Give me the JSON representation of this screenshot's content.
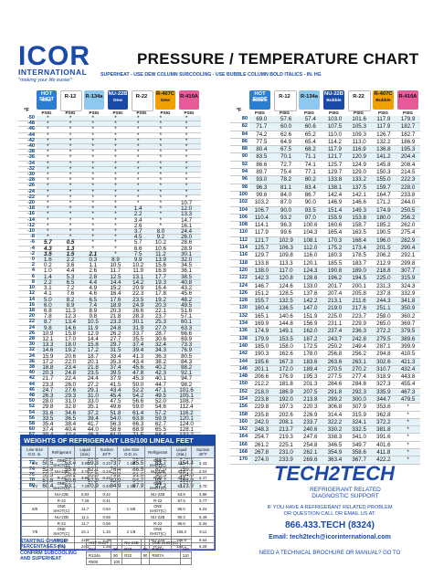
{
  "logo": {
    "name": "ICOR",
    "intl": "INTERNATIONAL",
    "tag": "\"making your life easier\""
  },
  "title": "PRESSURE / TEMPERATURE CHART",
  "subtitle": "SUPERHEAT - USE DEW COLUMN   SUBCOOLING - USE BUBBLE COLUMN   BOLD ITALICS - IN. HG",
  "headers_left": [
    {
      "label": "HOT SHOT",
      "sub": "Dew",
      "unit": "PSIG",
      "color": "#2a7fd4"
    },
    {
      "label": "R-12",
      "sub": "",
      "unit": "PSIG",
      "color": "#ffffff"
    },
    {
      "label": "R-134a",
      "sub": "",
      "unit": "PSIG",
      "color": "#8fc8ee"
    },
    {
      "label": "NU-22B",
      "sub": "Dew",
      "unit": "PSIG",
      "color": "#1a4aa8"
    },
    {
      "label": "R-22",
      "sub": "",
      "unit": "PSIG",
      "color": "#ffffff"
    },
    {
      "label": "R-407C",
      "sub": "Dew",
      "unit": "PSIG",
      "color": "#f0a000"
    },
    {
      "label": "R-410A",
      "sub": "",
      "unit": "PSIG",
      "color": "#e85a9a"
    }
  ],
  "headers_right": [
    {
      "label": "HOT SHOT",
      "sub": "Bubble",
      "unit": "PSIG",
      "color": "#2a7fd4"
    },
    {
      "label": "R-12",
      "sub": "",
      "unit": "PSIG",
      "color": "#ffffff"
    },
    {
      "label": "R-134a",
      "sub": "",
      "unit": "PSIG",
      "color": "#8fc8ee"
    },
    {
      "label": "NU-22B",
      "sub": "Bubble",
      "unit": "PSIG",
      "color": "#1a4aa8"
    },
    {
      "label": "R-22",
      "sub": "",
      "unit": "PSIG",
      "color": "#ffffff"
    },
    {
      "label": "R-407C",
      "sub": "Bubble",
      "unit": "PSIG",
      "color": "#f0a000"
    },
    {
      "label": "R-410A",
      "sub": "",
      "unit": "PSIG",
      "color": "#e85a9a"
    }
  ],
  "temp_unit": "°F",
  "left_rows": [
    [
      "-50",
      "*",
      "*",
      "*",
      "*",
      "*",
      "*",
      "*"
    ],
    [
      "-48",
      "*",
      "*",
      "*",
      "*",
      "*",
      "*",
      "*"
    ],
    [
      "-46",
      "*",
      "*",
      "*",
      "*",
      "*",
      "*",
      "*"
    ],
    [
      "-44",
      "*",
      "*",
      "*",
      "*",
      "*",
      "*",
      "*"
    ],
    [
      "-42",
      "*",
      "*",
      "*",
      "*",
      "*",
      "*",
      "*"
    ],
    [
      "-40",
      "*",
      "*",
      "*",
      "*",
      "*",
      "*",
      "*"
    ],
    [
      "-38",
      "*",
      "*",
      "*",
      "*",
      "*",
      "*",
      "*"
    ],
    [
      "-36",
      "*",
      "*",
      "*",
      "*",
      "*",
      "*",
      "*"
    ],
    [
      "-34",
      "*",
      "*",
      "*",
      "*",
      "*",
      "*",
      "*"
    ],
    [
      "-32",
      "*",
      "*",
      "*",
      "*",
      "*",
      "*",
      "*"
    ],
    [
      "-30",
      "*",
      "*",
      "*",
      "*",
      "*",
      "*",
      "*"
    ],
    [
      "-28",
      "*",
      "*",
      "*",
      "*",
      "*",
      "*",
      "*"
    ],
    [
      "-26",
      "*",
      "*",
      "*",
      "*",
      "*",
      "*",
      "*"
    ],
    [
      "-24",
      "*",
      "*",
      "*",
      "*",
      "*",
      "*",
      "*"
    ],
    [
      "-22",
      "*",
      "*",
      "*",
      "*",
      "*",
      "*",
      "*"
    ],
    [
      "-20",
      "*",
      "*",
      "*",
      "*",
      "*",
      "*",
      "10.7"
    ],
    [
      "-18",
      "*",
      "*",
      "*",
      "*",
      "1.4",
      "*",
      "12.0"
    ],
    [
      "-16",
      "*",
      "*",
      "*",
      "*",
      "2.2",
      "*",
      "13.3"
    ],
    [
      "-14",
      "*",
      "*",
      "*",
      "*",
      "3.4",
      "*",
      "14.7"
    ],
    [
      "-12",
      "*",
      "*",
      "*",
      "*",
      "2.6",
      "*",
      "16.1"
    ],
    [
      "-10",
      "*",
      "*",
      "*",
      "*",
      "3.7",
      "8.0",
      "24.4"
    ],
    [
      "-8",
      "*",
      "*",
      "*",
      "*",
      "4.5",
      "9.2",
      "26.0"
    ],
    [
      "-6",
      "5.7",
      "0.5",
      "*",
      "*",
      "5.7",
      "10.2",
      "28.6"
    ],
    [
      "-4",
      "4.3",
      "1.3",
      "*",
      "*",
      "6.6",
      "10.6",
      "28.9"
    ],
    [
      "-2",
      "3.5",
      "1.5",
      "2.1",
      "*",
      "7.5",
      "11.2",
      "30.1"
    ],
    [
      "0",
      "1.6",
      "2.2",
      "0.3",
      "8.9",
      "9.9",
      "13.9",
      "32.0"
    ],
    [
      "2",
      "0.2",
      "3.6",
      "1.1",
      "10.5",
      "10.2",
      "15.6",
      "34.5"
    ],
    [
      "4",
      "1.0",
      "4.4",
      "2.6",
      "11.7",
      "11.9",
      "16.8",
      "36.1"
    ],
    [
      "6",
      "1.4",
      "5.3",
      "2.8",
      "12.5",
      "13.1",
      "17.7",
      "38.5"
    ],
    [
      "8",
      "2.2",
      "6.5",
      "4.4",
      "14.4",
      "14.2",
      "19.3",
      "40.8"
    ],
    [
      "10",
      "3.1",
      "7.2",
      "4.9",
      "15.2",
      "20.9",
      "16.4",
      "43.2"
    ],
    [
      "12",
      "4.1",
      "7.6",
      "4.6",
      "16.4",
      "22.3",
      "17.8",
      "45.6"
    ],
    [
      "14",
      "5.0",
      "8.2",
      "6.5",
      "17.6",
      "23.5",
      "19.2",
      "48.2"
    ],
    [
      "16",
      "6.0",
      "8.9",
      "7.4",
      "18.9",
      "24.9",
      "20.3",
      "49.5"
    ],
    [
      "18",
      "6.8",
      "11.3",
      "8.9",
      "20.3",
      "26.6",
      "22.1",
      "51.6"
    ],
    [
      "20",
      "7.8",
      "12.3",
      "9.8",
      "21.8",
      "28.3",
      "23.7",
      "57.1"
    ],
    [
      "22",
      "8.7",
      "13.4",
      "10.5",
      "23.3",
      "30.1",
      "25.3",
      "60.1"
    ],
    [
      "24",
      "9.8",
      "14.6",
      "11.9",
      "24.8",
      "31.9",
      "27.0",
      "63.3"
    ],
    [
      "26",
      "10.9",
      "15.8",
      "12.9",
      "26.2",
      "33.7",
      "28.7",
      "66.6"
    ],
    [
      "28",
      "12.1",
      "17.0",
      "14.4",
      "27.7",
      "35.5",
      "30.6",
      "69.9"
    ],
    [
      "30",
      "13.3",
      "18.0",
      "15.8",
      "29.7",
      "37.4",
      "32.4",
      "73.3"
    ],
    [
      "32",
      "14.6",
      "19.2",
      "17.2",
      "31.5",
      "39.4",
      "34.3",
      "76.9"
    ],
    [
      "34",
      "15.9",
      "20.6",
      "18.7",
      "33.4",
      "41.3",
      "36.3",
      "80.5"
    ],
    [
      "36",
      "17.2",
      "22.0",
      "20.1",
      "35.3",
      "43.4",
      "38.2",
      "84.3"
    ],
    [
      "38",
      "18.8",
      "23.4",
      "21.8",
      "37.4",
      "45.6",
      "40.2",
      "88.2"
    ],
    [
      "40",
      "20.3",
      "24.8",
      "23.5",
      "39.5",
      "47.8",
      "42.3",
      "92.1"
    ],
    [
      "42",
      "21.7",
      "22.4",
      "24.4",
      "37.9",
      "45.3",
      "40.1",
      "94.7"
    ],
    [
      "44",
      "23.3",
      "26.0",
      "27.2",
      "41.5",
      "50.0",
      "44.7",
      "98.2"
    ],
    [
      "46",
      "24.7",
      "27.6",
      "29.1",
      "43.4",
      "52.2",
      "47.1",
      "101.6"
    ],
    [
      "48",
      "26.3",
      "29.3",
      "31.0",
      "45.4",
      "54.2",
      "49.5",
      "105.1"
    ],
    [
      "50",
      "28.0",
      "31.0",
      "33.0",
      "47.5",
      "56.6",
      "52.0",
      "108.7"
    ],
    [
      "52",
      "29.8",
      "32.8",
      "35.1",
      "49.6",
      "59.0",
      "54.6",
      "112.4"
    ],
    [
      "54",
      "31.6",
      "34.6",
      "37.2",
      "51.8",
      "61.4",
      "57.2",
      "116.2"
    ],
    [
      "56",
      "33.5",
      "36.5",
      "39.4",
      "54.0",
      "63.8",
      "59.9",
      "120.1"
    ],
    [
      "58",
      "35.4",
      "38.4",
      "41.7",
      "56.3",
      "66.3",
      "62.7",
      "124.0"
    ],
    [
      "60",
      "37.4",
      "40.4",
      "44.0",
      "58.6",
      "68.9",
      "65.5",
      "128.1"
    ],
    [
      "62",
      "39.4",
      "42.4",
      "46.3",
      "61.0",
      "71.5",
      "68.4",
      "132.2"
    ],
    [
      "64",
      "41.5",
      "44.5",
      "48.8",
      "63.4",
      "74.2",
      "71.3",
      "136.5"
    ],
    [
      "66",
      "43.7",
      "46.6",
      "51.3",
      "65.9",
      "77.0",
      "74.3",
      "140.8"
    ],
    [
      "68",
      "45.9",
      "48.8",
      "53.9",
      "68.4",
      "79.8",
      "77.4",
      "145.3"
    ],
    [
      "70",
      "48.2",
      "51.1",
      "56.6",
      "71.0",
      "82.6",
      "80.5",
      "149.8"
    ],
    [
      "72",
      "50.5",
      "53.4",
      "59.3",
      "73.7",
      "85.5",
      "83.7",
      "154.4"
    ],
    [
      "74",
      "52.9",
      "55.8",
      "62.1",
      "76.4",
      "88.5",
      "87.0",
      "159.2"
    ],
    [
      "76",
      "55.3",
      "58.2",
      "65.0",
      "79.2",
      "91.6",
      "90.3",
      "164.0"
    ],
    [
      "78",
      "57.8",
      "60.6",
      "67.9",
      "82.0",
      "94.7",
      "93.7",
      "168.9"
    ],
    [
      "80",
      "60.4",
      "63.1",
      "70.9",
      "84.9",
      "97.9",
      "97.2",
      "173.9"
    ]
  ],
  "right_rows": [
    [
      "80",
      "69.0",
      "57.6",
      "57.4",
      "103.0",
      "101.6",
      "117.9",
      "179.9"
    ],
    [
      "82",
      "71.7",
      "60.0",
      "60.6",
      "107.5",
      "105.3",
      "117.9",
      "182.7"
    ],
    [
      "84",
      "74.2",
      "62.6",
      "65.2",
      "110.0",
      "109.3",
      "126.7",
      "182.7"
    ],
    [
      "86",
      "77.5",
      "64.9",
      "65.4",
      "114.2",
      "113.0",
      "132.2",
      "186.9"
    ],
    [
      "88",
      "80.4",
      "67.5",
      "68.2",
      "117.9",
      "116.9",
      "136.8",
      "195.3"
    ],
    [
      "90",
      "83.5",
      "70.1",
      "71.1",
      "121.7",
      "120.9",
      "141.2",
      "204.4"
    ],
    [
      "92",
      "86.6",
      "72.7",
      "74.1",
      "125.7",
      "124.9",
      "145.8",
      "208.4"
    ],
    [
      "94",
      "89.7",
      "75.4",
      "77.1",
      "129.7",
      "129.0",
      "150.3",
      "214.5"
    ],
    [
      "96",
      "93.0",
      "78.2",
      "80.2",
      "133.8",
      "133.2",
      "155.0",
      "222.3"
    ],
    [
      "98",
      "96.3",
      "81.1",
      "83.4",
      "138.1",
      "137.5",
      "159.7",
      "228.0"
    ],
    [
      "100",
      "99.6",
      "84.0",
      "86.7",
      "142.4",
      "142.1",
      "164.7",
      "233.8"
    ],
    [
      "102",
      "103.2",
      "87.0",
      "90.0",
      "146.9",
      "146.6",
      "171.2",
      "244.0"
    ],
    [
      "104",
      "106.7",
      "90.0",
      "93.5",
      "151.4",
      "149.3",
      "174.9",
      "250.5"
    ],
    [
      "106",
      "110.4",
      "93.2",
      "97.0",
      "155.9",
      "153.8",
      "180.0",
      "256.2"
    ],
    [
      "108",
      "114.1",
      "96.3",
      "100.6",
      "160.6",
      "158.7",
      "185.2",
      "262.0"
    ],
    [
      "110",
      "117.9",
      "99.6",
      "104.3",
      "165.4",
      "163.5",
      "190.5",
      "275.4"
    ],
    [
      "112",
      "121.7",
      "102.9",
      "108.1",
      "170.3",
      "168.4",
      "196.0",
      "282.9"
    ],
    [
      "114",
      "125.7",
      "106.3",
      "112.0",
      "175.2",
      "173.4",
      "201.5",
      "290.4"
    ],
    [
      "116",
      "129.7",
      "109.8",
      "116.0",
      "180.3",
      "178.5",
      "206.2",
      "292.1"
    ],
    [
      "118",
      "133.8",
      "113.3",
      "120.1",
      "185.5",
      "183.7",
      "212.9",
      "299.8"
    ],
    [
      "120",
      "138.0",
      "117.0",
      "124.3",
      "190.8",
      "189.0",
      "218.8",
      "307.7"
    ],
    [
      "122",
      "142.3",
      "120.8",
      "128.6",
      "196.2",
      "194.5",
      "225.0",
      "315.9"
    ],
    [
      "124",
      "146.7",
      "124.6",
      "133.0",
      "201.7",
      "200.1",
      "231.3",
      "324.3"
    ],
    [
      "126",
      "151.2",
      "128.5",
      "137.6",
      "207.4",
      "205.8",
      "237.8",
      "332.9"
    ],
    [
      "128",
      "155.7",
      "132.5",
      "142.2",
      "213.1",
      "211.6",
      "244.3",
      "341.8"
    ],
    [
      "130",
      "160.4",
      "136.5",
      "147.0",
      "219.0",
      "217.6",
      "251.1",
      "350.9"
    ],
    [
      "132",
      "165.1",
      "140.6",
      "151.9",
      "225.0",
      "223.7",
      "258.0",
      "360.2"
    ],
    [
      "134",
      "169.9",
      "144.8",
      "156.9",
      "231.1",
      "229.9",
      "265.0",
      "369.7"
    ],
    [
      "136",
      "174.9",
      "149.1",
      "162.0",
      "237.4",
      "236.3",
      "272.2",
      "379.5"
    ],
    [
      "138",
      "179.9",
      "153.5",
      "167.2",
      "243.7",
      "242.8",
      "279.5",
      "389.6"
    ],
    [
      "140",
      "185.0",
      "158.0",
      "172.5",
      "250.2",
      "249.4",
      "287.1",
      "399.9"
    ],
    [
      "142",
      "190.3",
      "162.6",
      "178.0",
      "256.8",
      "256.2",
      "294.8",
      "410.5"
    ],
    [
      "144",
      "195.6",
      "167.3",
      "183.6",
      "263.6",
      "263.1",
      "302.6",
      "421.3"
    ],
    [
      "146",
      "201.1",
      "172.0",
      "189.4",
      "270.5",
      "270.2",
      "310.7",
      "432.4"
    ],
    [
      "148",
      "206.6",
      "176.9",
      "195.3",
      "277.5",
      "277.4",
      "318.9",
      "443.8"
    ],
    [
      "150",
      "212.2",
      "181.8",
      "201.3",
      "284.6",
      "284.8",
      "327.3",
      "455.4"
    ],
    [
      "152",
      "218.0",
      "186.9",
      "207.5",
      "291.8",
      "292.3",
      "335.9",
      "467.3"
    ],
    [
      "154",
      "223.8",
      "192.0",
      "213.8",
      "299.2",
      "300.0",
      "344.7",
      "479.5"
    ],
    [
      "156",
      "229.8",
      "197.3",
      "220.3",
      "306.8",
      "307.9",
      "353.6",
      "*"
    ],
    [
      "158",
      "235.8",
      "202.6",
      "226.9",
      "314.4",
      "315.9",
      "362.8",
      "*"
    ],
    [
      "160",
      "242.0",
      "208.1",
      "233.7",
      "322.2",
      "324.1",
      "372.2",
      "*"
    ],
    [
      "162",
      "248.3",
      "213.7",
      "240.6",
      "330.2",
      "332.5",
      "381.8",
      "*"
    ],
    [
      "164",
      "254.7",
      "219.3",
      "247.6",
      "338.3",
      "341.0",
      "391.6",
      "*"
    ],
    [
      "166",
      "261.2",
      "225.1",
      "254.8",
      "346.5",
      "349.7",
      "401.6",
      "*"
    ],
    [
      "168",
      "267.8",
      "231.0",
      "262.1",
      "354.9",
      "358.6",
      "411.8",
      "*"
    ],
    [
      "170",
      "274.0",
      "233.9",
      "269.6",
      "363.4",
      "367.7",
      "422.2",
      "*"
    ]
  ],
  "weights": {
    "title": "WEIGHTS OF REFRIGERANT LBS/100 LINEAL FEET",
    "head": [
      "Line Size O.D. In.",
      "Refrigerant",
      "Liquid (Sat.)",
      "Suction 40°F",
      "Line Size O.D. In.",
      "Refrigerant",
      "Liquid (Sat.)",
      "Suction 40°F"
    ],
    "rows": [
      [
        "3/8",
        "ONE SHOT(C)",
        "3.95",
        "0.22",
        "1 1/8",
        "ONE SHOT(C)",
        "44.0",
        "2.43"
      ],
      [
        "",
        "NU-22B",
        "3.76",
        "0.23",
        "",
        "NU-22B",
        "41.8",
        "2.54"
      ],
      [
        "",
        "R-22",
        "3.99",
        "0.22",
        "",
        "R-22",
        "44.3",
        "2.47"
      ],
      [
        "1/2",
        "ONE SHOT(C)",
        "7.20",
        "0.40",
        "1 3/8",
        "ONE SHOT(C)",
        "67.1",
        "3.70"
      ],
      [
        "",
        "NU-22B",
        "6.83",
        "0.42",
        "",
        "NU-22B",
        "63.8",
        "3.88"
      ],
      [
        "",
        "R-22",
        "7.28",
        "0.41",
        "",
        "R-22",
        "67.5",
        "3.77"
      ],
      [
        "5/8",
        "ONE SHOT(C)",
        "11.7",
        "0.64",
        "1 5/8",
        "ONE SHOT(C)",
        "95.0",
        "5.24"
      ],
      [
        "",
        "NU-22B",
        "11.1",
        "0.68",
        "",
        "NU-22B",
        "90.3",
        "5.49"
      ],
      [
        "",
        "R-22",
        "11.7",
        "0.66",
        "",
        "R-22",
        "95.6",
        "5.34"
      ],
      [
        "7/8",
        "ONE SHOT(C)",
        "24.1",
        "1.33",
        "2 1/8",
        "ONE SHOT(C)",
        "165.0",
        "9.11"
      ],
      [
        "",
        "NU-22B",
        "22.9",
        "1.39",
        "",
        "NU-22B",
        "156.8",
        "9.54"
      ],
      [
        "",
        "R-22",
        "24.3",
        "1.36",
        "",
        "R-22",
        "166.1",
        "9.28"
      ]
    ]
  },
  "charge": {
    "label": "STARTING CHARGE PERCENTAGES (%) CONFIRM SUBCOOLING AND SUPERHEAT",
    "rows": [
      [
        "HOT SHOT",
        "",
        "NU-22B",
        "",
        "ONE SHOT(C)",
        ""
      ],
      [
        "R12",
        "95",
        "R22",
        "90",
        "R404A",
        "110"
      ],
      [
        "R134a",
        "90",
        "R22",
        "90",
        "R507A",
        "110"
      ],
      [
        "R500",
        "100",
        "",
        "",
        "",
        ""
      ]
    ]
  },
  "brand": {
    "logo": "TECH2TECH",
    "sub1": "REFRIGERANT RELATED",
    "sub2": "DIAGNOSTIC SUPPORT",
    "line1": "IF YOU HAVE A REFRIGERANT RELATED PROBLEM",
    "line2": "OR QUESTION CALL OR EMAIL US AT:",
    "phone": "866.433.TECH (8324)",
    "email": "Email: tech2tech@icorinternational.com",
    "tail": "NEED A TECHNICAL BROCHURE OR MANUAL? GO TO"
  }
}
